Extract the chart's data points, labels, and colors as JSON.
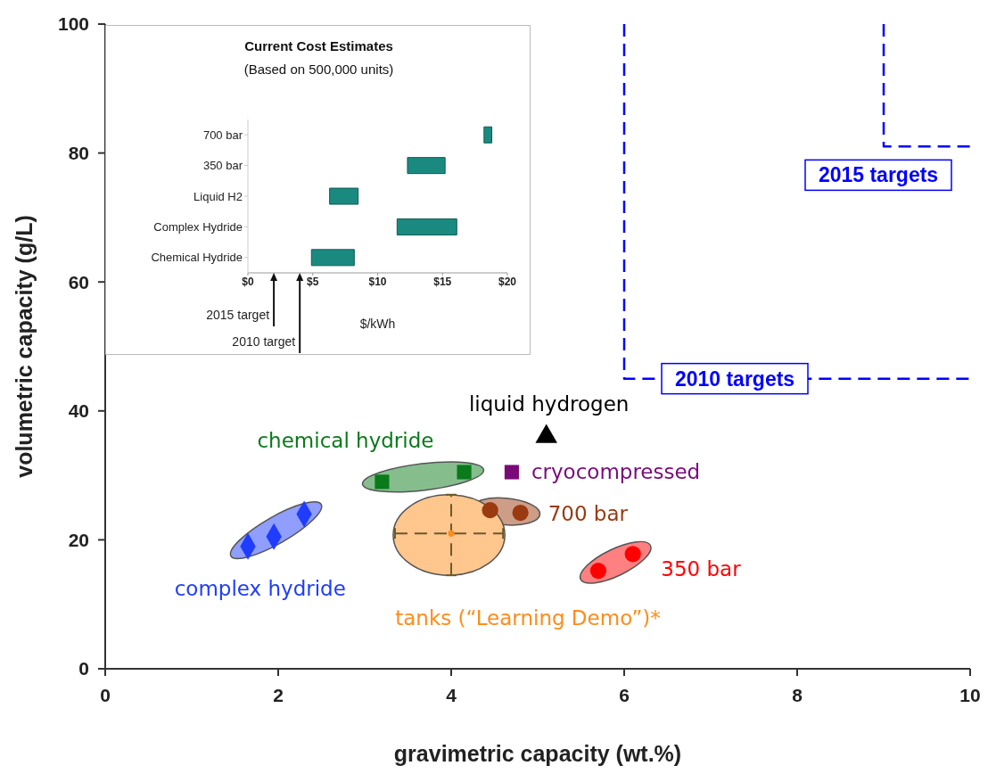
{
  "chart_data": [
    {
      "type": "scatter",
      "xlabel": "gravimetric capacity (wt.%)",
      "ylabel": "volumetric capacity (g/L)",
      "xlim": [
        0,
        10
      ],
      "xticks": [
        0,
        2,
        4,
        6,
        8,
        10
      ],
      "ylim": [
        0,
        100
      ],
      "yticks": [
        0,
        20,
        40,
        60,
        80,
        100
      ],
      "series": [
        {
          "name": "complex hydride",
          "color": "#1f3cff",
          "marker": "diamond",
          "x": [
            1.65,
            1.95,
            2.3
          ],
          "values": [
            19,
            20.5,
            24
          ]
        },
        {
          "name": "chemical hydride",
          "color": "#0a7a1a",
          "marker": "square",
          "x": [
            3.2,
            4.15
          ],
          "values": [
            29,
            30.5
          ]
        },
        {
          "name": "liquid hydrogen",
          "color": "#000000",
          "marker": "triangle",
          "x": [
            5.1
          ],
          "values": [
            36
          ]
        },
        {
          "name": "cryocompressed",
          "color": "#7a0a7a",
          "marker": "square",
          "x": [
            4.7
          ],
          "values": [
            30.5
          ]
        },
        {
          "name": "700 bar",
          "color": "#9a3a10",
          "marker": "circle",
          "x": [
            4.45,
            4.8
          ],
          "values": [
            24.6,
            24.2
          ]
        },
        {
          "name": "350 bar",
          "color": "#ff0000",
          "marker": "circle",
          "x": [
            5.7,
            6.1
          ],
          "values": [
            15.2,
            17.8
          ]
        },
        {
          "name": "tanks (“Learning Demo”)*",
          "color": "#ff8c1a",
          "marker": "circle",
          "x": [
            4
          ],
          "values": [
            21
          ],
          "errors": [
            [
              14.5,
              27
            ]
          ],
          "xerrors": [
            [
              3.35,
              4.6
            ]
          ]
        },
        {
          "name": "2010 targets",
          "type": "line",
          "color": "#0000ff",
          "line_style": "dashed",
          "marker": "none",
          "x": [
            6,
            6,
            10
          ],
          "values": [
            100,
            45,
            45
          ]
        },
        {
          "name": "2015 targets",
          "type": "line",
          "color": "#0000ff",
          "line_style": "dashed",
          "marker": "none",
          "x": [
            9,
            9,
            10
          ],
          "values": [
            100,
            81,
            81
          ]
        }
      ]
    },
    {
      "type": "bar",
      "orientation": "horizontal",
      "title": "Current Cost Estimates",
      "subtitle": "(Based on 500,000 units)",
      "xlabel": "$/kWh",
      "categories": [
        "700 bar",
        "350 bar",
        "Liquid H2",
        "Complex Hydride",
        "Chemical Hydride"
      ],
      "base": [
        18.2,
        12.3,
        6.3,
        11.5,
        4.9
      ],
      "values": [
        0.6,
        2.9,
        2.2,
        4.6,
        3.3
      ],
      "color": "#1a8a80",
      "xlim": [
        0,
        20
      ],
      "xticks": [
        {
          "value": 0,
          "label": "$0"
        },
        {
          "value": 5,
          "label": "$5"
        },
        {
          "value": 10,
          "label": "$10"
        },
        {
          "value": 15,
          "label": "$15"
        },
        {
          "value": 20,
          "label": "$20"
        }
      ],
      "ref_lines": [
        {
          "axis": "x",
          "value": 2,
          "label": "2015 target"
        },
        {
          "axis": "x",
          "value": 4,
          "label": "2010 target"
        }
      ]
    }
  ]
}
